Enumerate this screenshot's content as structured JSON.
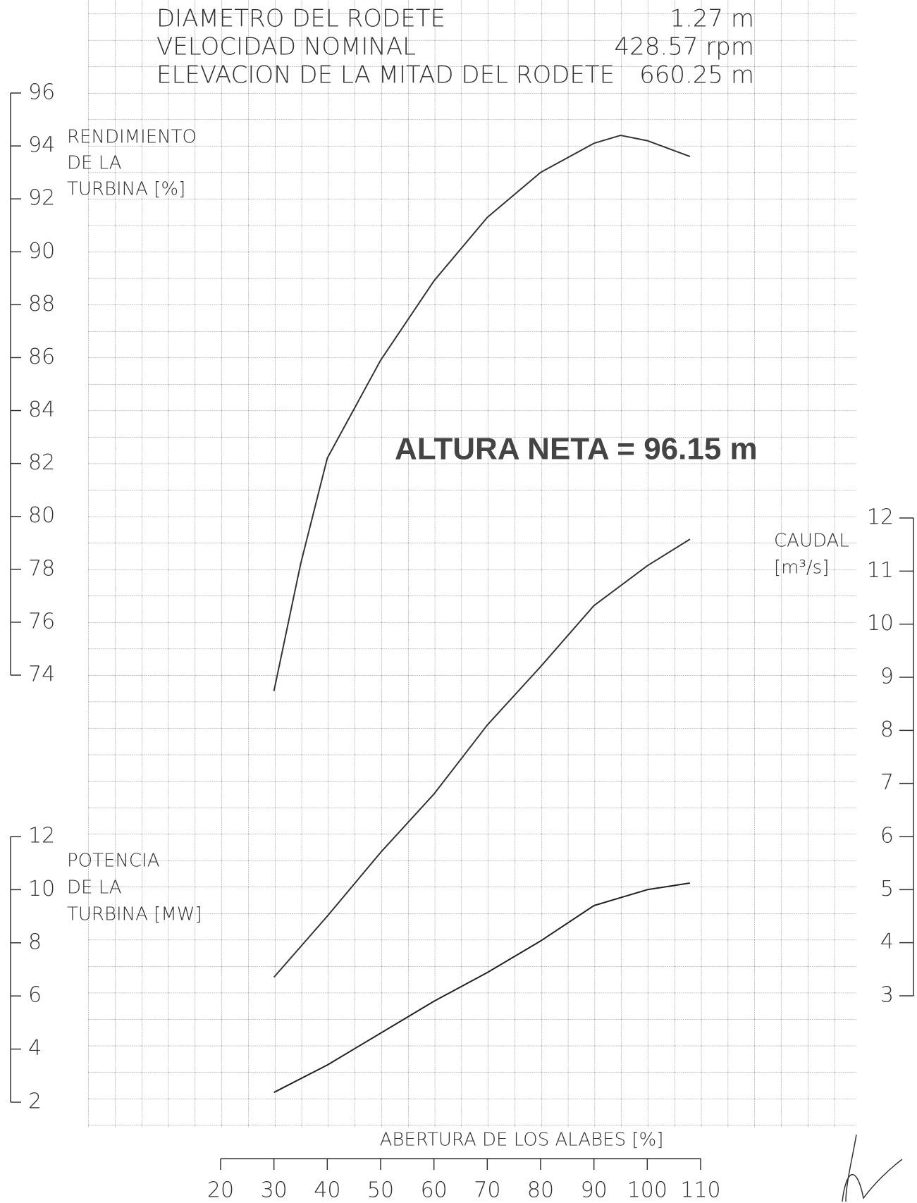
{
  "chart_data": {
    "type": "line",
    "header": [
      {
        "label": "DIAMETRO DEL RODETE",
        "value": "1.27 m"
      },
      {
        "label": "VELOCIDAD NOMINAL",
        "value": "428.57 rpm"
      },
      {
        "label": "ELEVACION DE LA MITAD DEL RODETE",
        "value": "660.25 m"
      }
    ],
    "annotation": "ALTURA NETA = 96.15 m",
    "xlabel": "ABERTURA DE LOS ALABES [%]",
    "ylabel": [
      "RENDIMIENTO",
      "DE LA",
      "TURBINA [%]"
    ],
    "y2label": [
      "CAUDAL",
      "[m³/s]"
    ],
    "y3label": [
      "POTENCIA",
      "DE LA",
      "TURBINA [MW]"
    ],
    "xlim": [
      20,
      110
    ],
    "xticks": [
      20,
      30,
      40,
      50,
      60,
      70,
      80,
      90,
      100,
      110
    ],
    "ylim": [
      74,
      96
    ],
    "yticks": [
      74,
      76,
      78,
      80,
      82,
      84,
      86,
      88,
      90,
      92,
      94,
      96
    ],
    "y2lim": [
      3,
      12
    ],
    "y2ticks": [
      3,
      4,
      5,
      6,
      7,
      8,
      9,
      10,
      11,
      12
    ],
    "y3lim": [
      2,
      12
    ],
    "y3ticks": [
      2,
      4,
      6,
      8,
      10,
      12
    ],
    "grid": true,
    "series": [
      {
        "axis": "y",
        "color": "#333333",
        "x": [
          30,
          35,
          40,
          50,
          60,
          70,
          80,
          90,
          95,
          100,
          108
        ],
        "values": [
          73.4,
          78.2,
          82.2,
          85.9,
          88.9,
          91.3,
          93.0,
          94.1,
          94.4,
          94.2,
          93.6
        ]
      },
      {
        "axis": "y2",
        "color": "#333333",
        "x": [
          30,
          40,
          50,
          60,
          70,
          80,
          90,
          100,
          108
        ],
        "values": [
          3.35,
          4.5,
          5.7,
          6.8,
          8.1,
          9.2,
          10.35,
          11.1,
          11.6
        ]
      },
      {
        "axis": "y3",
        "color": "#222222",
        "x": [
          30,
          40,
          50,
          60,
          70,
          80,
          90,
          100,
          108
        ],
        "values": [
          2.37,
          3.4,
          4.6,
          5.8,
          6.88,
          8.07,
          9.4,
          10.0,
          10.25
        ]
      }
    ]
  }
}
